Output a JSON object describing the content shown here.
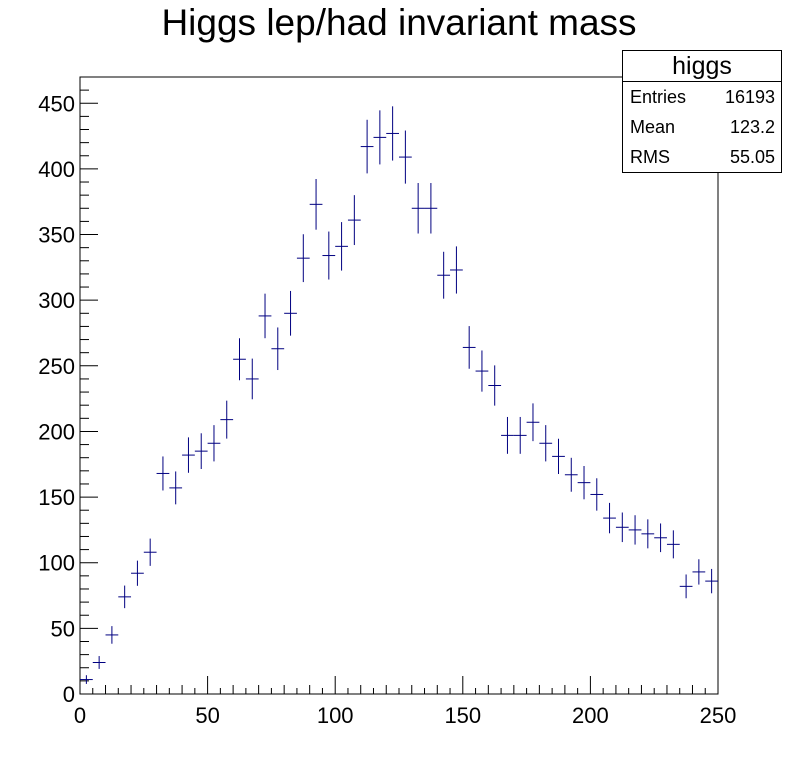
{
  "chart_data": {
    "type": "histogram",
    "title": "Higgs lep/had invariant mass",
    "xlabel": "",
    "ylabel": "",
    "xlim": [
      0,
      250
    ],
    "ylim": [
      0,
      470
    ],
    "xticks": [
      0,
      50,
      100,
      150,
      200,
      250
    ],
    "yticks": [
      0,
      50,
      100,
      150,
      200,
      250,
      300,
      350,
      400,
      450
    ],
    "bin_width": 5,
    "series": [
      {
        "color": "#000080",
        "bin_centers": [
          2.5,
          7.5,
          12.5,
          17.5,
          22.5,
          27.5,
          32.5,
          37.5,
          42.5,
          47.5,
          52.5,
          57.5,
          62.5,
          67.5,
          72.5,
          77.5,
          82.5,
          87.5,
          92.5,
          97.5,
          102.5,
          107.5,
          112.5,
          117.5,
          122.5,
          127.5,
          132.5,
          137.5,
          142.5,
          147.5,
          152.5,
          157.5,
          162.5,
          167.5,
          172.5,
          177.5,
          182.5,
          187.5,
          192.5,
          197.5,
          202.5,
          207.5,
          212.5,
          217.5,
          222.5,
          227.5,
          232.5,
          237.5,
          242.5,
          247.5
        ],
        "values": [
          11,
          24,
          45,
          74,
          92,
          108,
          168,
          157,
          182,
          185,
          191,
          209,
          255,
          240,
          288,
          263,
          290,
          332,
          373,
          334,
          341,
          361,
          417,
          424,
          427,
          409,
          370,
          370,
          319,
          323,
          264,
          246,
          235,
          197,
          197,
          207,
          191,
          181,
          167,
          161,
          152,
          134,
          127,
          125,
          122,
          119,
          114,
          82,
          93,
          86
        ]
      }
    ]
  },
  "stats_box": {
    "title": "higgs",
    "rows": [
      {
        "label": "Entries",
        "value": "16193"
      },
      {
        "label": "Mean",
        "value": "123.2"
      },
      {
        "label": "RMS",
        "value": "55.05"
      }
    ]
  }
}
